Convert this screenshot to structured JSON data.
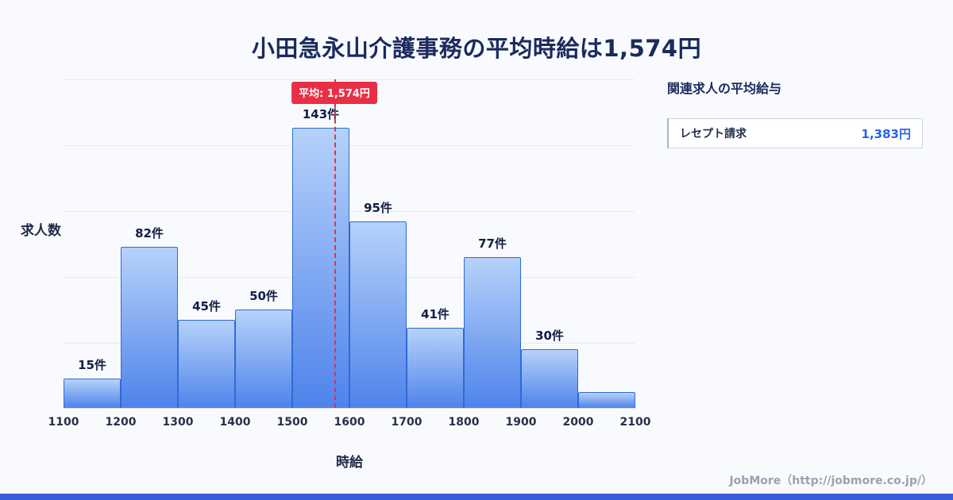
{
  "chart_data": {
    "type": "bar",
    "title": "小田急永山介護事務の平均時給は1,574円",
    "xlabel": "時給",
    "ylabel": "求人数",
    "x_ticks": [
      "1100",
      "1200",
      "1300",
      "1400",
      "1500",
      "1600",
      "1700",
      "1800",
      "1900",
      "2000",
      "2100"
    ],
    "categories": [
      "1100-1200",
      "1200-1300",
      "1300-1400",
      "1400-1500",
      "1500-1600",
      "1600-1700",
      "1700-1800",
      "1800-1900",
      "1900-2000",
      "2000-2100"
    ],
    "values": [
      15,
      82,
      45,
      50,
      143,
      95,
      41,
      77,
      30,
      8
    ],
    "bar_labels": [
      "15件",
      "82件",
      "45件",
      "50件",
      "143件",
      "95件",
      "41件",
      "77件",
      "30件",
      ""
    ],
    "average_line": {
      "x": 1574,
      "label": "平均: 1,574円",
      "color": "#e82f46"
    },
    "ylim": [
      0,
      168
    ],
    "grid": true,
    "legend": "none",
    "bar_color_top": "#b6d2fa",
    "bar_color_bottom": "#4f83eb",
    "bar_border_color": "#2e6bd4"
  },
  "side_panel": {
    "title": "関連求人の平均給与",
    "rows": [
      {
        "name": "レセプト請求",
        "value": "1,383円",
        "value_color": "#2563eb"
      }
    ]
  },
  "footer": {
    "credit": "JobMore（http://jobmore.co.jp/）",
    "accent_color": "#3a5cd8"
  }
}
